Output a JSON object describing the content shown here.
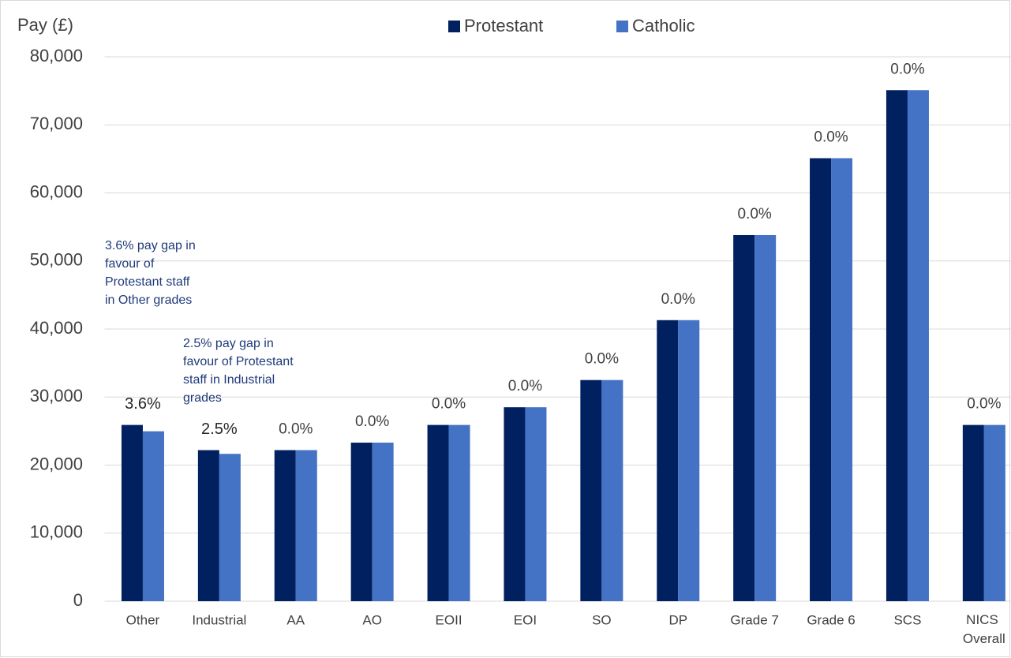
{
  "chart_data": {
    "type": "bar",
    "y_label": "Pay (£)",
    "categories": [
      "Other",
      "Industrial",
      "AA",
      "AO",
      "EOII",
      "EOI",
      "SO",
      "DP",
      "Grade 7",
      "Grade 6",
      "SCS",
      "NICS Overall"
    ],
    "series": [
      {
        "name": "Protestant",
        "color": "#002060",
        "values": [
          25900,
          22200,
          22200,
          23300,
          25900,
          28500,
          32500,
          41300,
          53800,
          65100,
          75100,
          25900
        ]
      },
      {
        "name": "Catholic",
        "color": "#4472c4",
        "values": [
          24970,
          21650,
          22200,
          23300,
          25900,
          28500,
          32500,
          41300,
          53800,
          65100,
          75100,
          25900
        ]
      }
    ],
    "gap_labels": [
      "3.6%",
      "2.5%",
      "0.0%",
      "0.0%",
      "0.0%",
      "0.0%",
      "0.0%",
      "0.0%",
      "0.0%",
      "0.0%",
      "0.0%",
      "0.0%"
    ],
    "annotations": [
      [
        "3.6% pay gap in",
        "favour of",
        "Protestant staff",
        "in Other grades"
      ],
      [
        "2.5% pay gap in",
        "favour of Protestant",
        "staff in Industrial",
        "grades"
      ]
    ],
    "ylim": [
      0,
      80000
    ],
    "yticks": [
      0,
      {
        "value": 10000,
        "label": "10,000"
      },
      {
        "value": 20000,
        "label": "20,000"
      },
      {
        "value": 30000,
        "label": "30,000"
      },
      {
        "value": 40000,
        "label": "40,000"
      },
      {
        "value": 50000,
        "label": "50,000"
      },
      {
        "value": 60000,
        "label": "60,000"
      },
      {
        "value": 70000,
        "label": "70,000"
      },
      {
        "value": 80000,
        "label": "80,000"
      }
    ],
    "grid": true,
    "legend": "top"
  }
}
